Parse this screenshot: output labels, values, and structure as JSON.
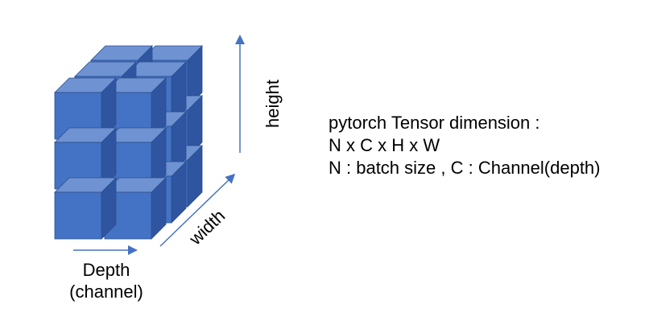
{
  "diagram": {
    "labels": {
      "height": "height",
      "width": "width",
      "depth_line1": "Depth",
      "depth_line2": "(channel)"
    },
    "info": {
      "line1": "pytorch Tensor dimension :",
      "line2": "N x C x H x W",
      "line3": "N : batch size , C : Channel(depth)"
    },
    "colors": {
      "cube_front": "#4472C4",
      "cube_top": "#6F92D2",
      "cube_side": "#2F55A0",
      "cube_edge": "#2A4F8F",
      "arrow": "#4472C4"
    },
    "grid": {
      "columns": 2,
      "rows": 3,
      "depth": 3
    }
  }
}
